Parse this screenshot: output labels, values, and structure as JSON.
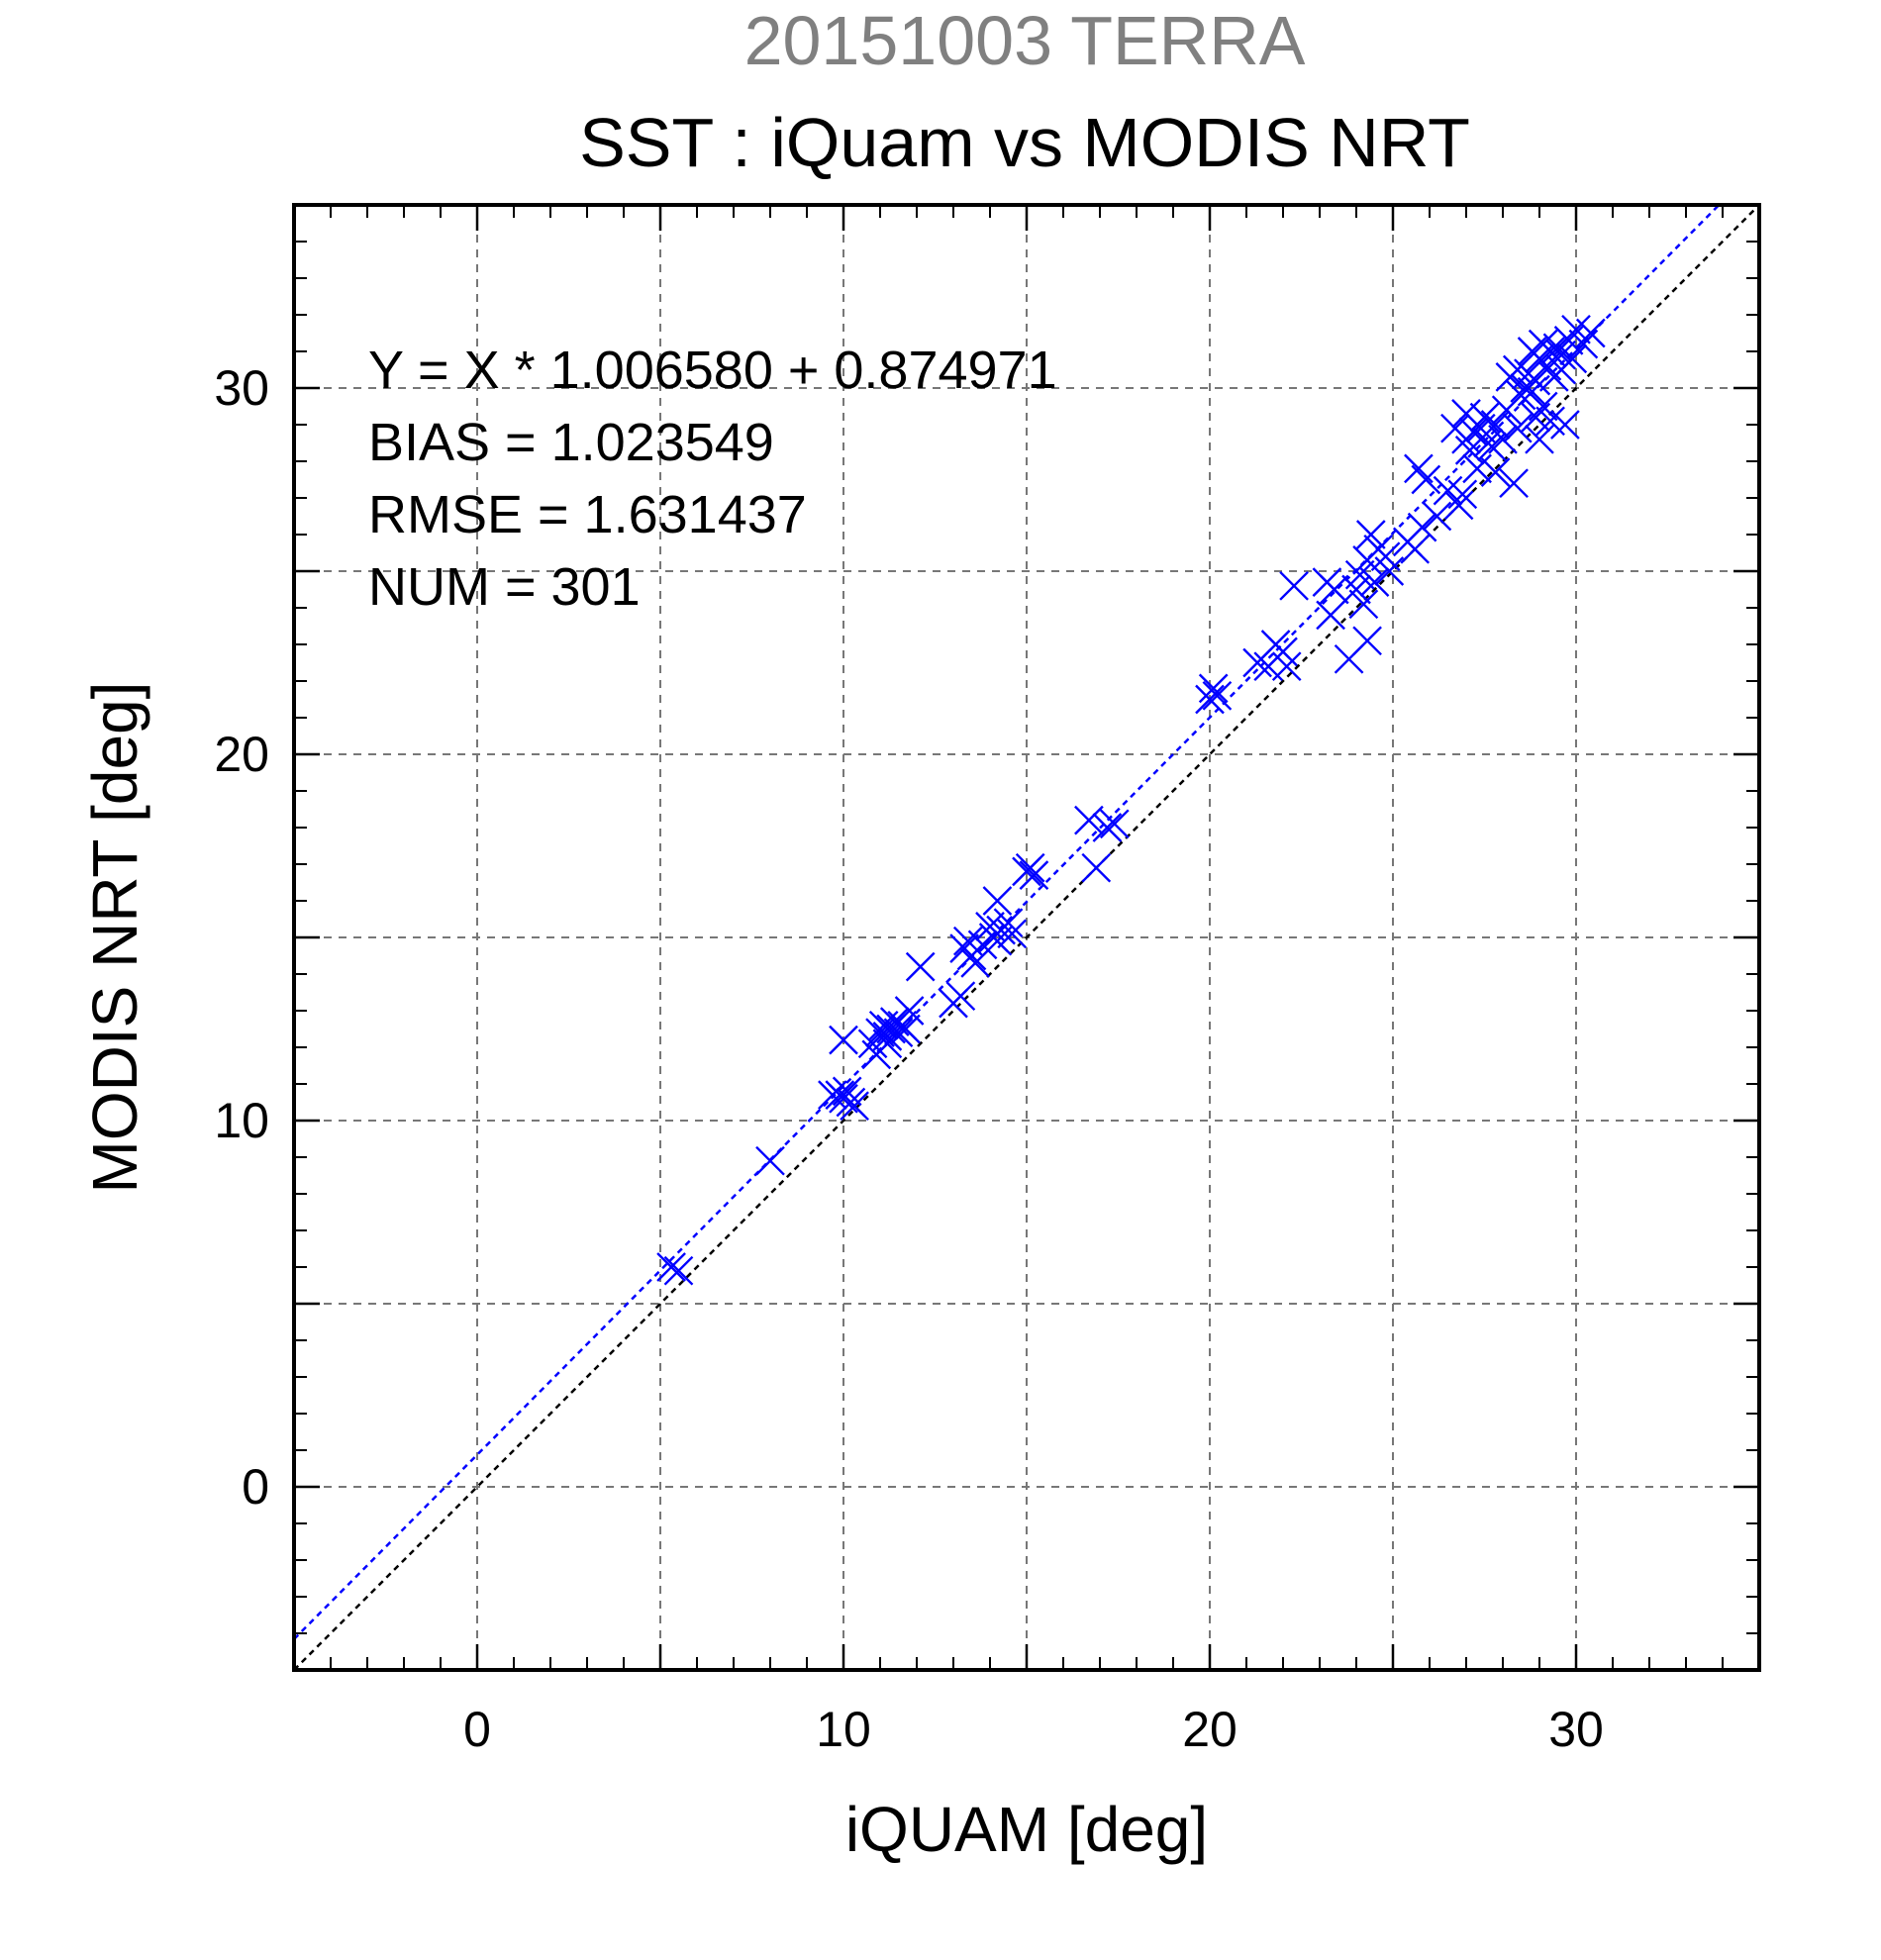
{
  "chart_data": {
    "type": "scatter",
    "title_top": "20151003 TERRA",
    "title": "SST : iQuam vs MODIS NRT",
    "xlabel": "iQUAM [deg]",
    "ylabel": "MODIS NRT [deg]",
    "xlim": [
      -5,
      35
    ],
    "ylim": [
      -5,
      35
    ],
    "xticks": [
      0,
      10,
      20,
      30
    ],
    "yticks": [
      0,
      10,
      20,
      30
    ],
    "xtick_labels": [
      "0",
      "10",
      "20",
      "30"
    ],
    "ytick_labels": [
      "0",
      "10",
      "20",
      "30"
    ],
    "minor_tick_step": 1,
    "grid_step": 5,
    "grid": true,
    "annotations": [
      "Y = X * 1.006580 + 0.874971",
      "BIAS = 1.023549",
      "RMSE = 1.631437",
      "NUM = 301"
    ],
    "regression": {
      "slope": 1.00658,
      "intercept": 0.874971
    },
    "colors": {
      "points": "#0000ff",
      "regression_line": "#0000ff",
      "identity_line": "#000000",
      "title_top": "#808080"
    },
    "series": [
      {
        "values": [
          [
            5.3,
            6.0
          ],
          [
            5.5,
            5.9
          ],
          [
            8.0,
            8.9
          ],
          [
            9.7,
            10.7
          ],
          [
            9.9,
            10.7
          ],
          [
            10.0,
            10.6
          ],
          [
            10.2,
            10.5
          ],
          [
            10.3,
            10.4
          ],
          [
            10.1,
            10.8
          ],
          [
            10.0,
            12.2
          ],
          [
            10.8,
            12.1
          ],
          [
            10.9,
            11.8
          ],
          [
            11.0,
            12.4
          ],
          [
            11.1,
            12.6
          ],
          [
            11.2,
            12.3
          ],
          [
            11.3,
            12.5
          ],
          [
            11.4,
            12.7
          ],
          [
            11.5,
            12.4
          ],
          [
            11.6,
            12.6
          ],
          [
            11.7,
            12.5
          ],
          [
            11.2,
            12.1
          ],
          [
            11.8,
            13.0
          ],
          [
            12.1,
            14.2
          ],
          [
            13.0,
            13.2
          ],
          [
            13.2,
            13.4
          ],
          [
            13.3,
            14.7
          ],
          [
            13.4,
            14.9
          ],
          [
            13.5,
            14.5
          ],
          [
            13.6,
            14.3
          ],
          [
            13.8,
            14.8
          ],
          [
            14.0,
            15.3
          ],
          [
            14.1,
            15.0
          ],
          [
            14.2,
            16.0
          ],
          [
            14.3,
            15.2
          ],
          [
            14.5,
            15.4
          ],
          [
            14.6,
            15.1
          ],
          [
            14.2,
            14.9
          ],
          [
            15.0,
            16.8
          ],
          [
            15.1,
            16.9
          ],
          [
            15.2,
            16.7
          ],
          [
            16.7,
            18.2
          ],
          [
            16.9,
            16.9
          ],
          [
            17.2,
            18.0
          ],
          [
            17.4,
            18.1
          ],
          [
            20.0,
            21.5
          ],
          [
            20.1,
            21.8
          ],
          [
            20.2,
            21.6
          ],
          [
            21.3,
            22.5
          ],
          [
            21.6,
            22.4
          ],
          [
            21.8,
            23.0
          ],
          [
            22.0,
            22.8
          ],
          [
            22.1,
            22.4
          ],
          [
            22.3,
            24.6
          ],
          [
            23.2,
            24.7
          ],
          [
            23.4,
            24.5
          ],
          [
            23.3,
            23.8
          ],
          [
            23.8,
            22.6
          ],
          [
            24.0,
            24.5
          ],
          [
            24.1,
            24.9
          ],
          [
            24.2,
            24.1
          ],
          [
            24.3,
            25.3
          ],
          [
            24.3,
            23.1
          ],
          [
            24.5,
            24.7
          ],
          [
            24.6,
            25.6
          ],
          [
            24.8,
            25.4
          ],
          [
            24.9,
            25.0
          ],
          [
            24.4,
            26.0
          ],
          [
            25.4,
            25.8
          ],
          [
            25.6,
            25.6
          ],
          [
            25.7,
            27.8
          ],
          [
            25.8,
            26.2
          ],
          [
            25.9,
            27.5
          ],
          [
            26.2,
            26.5
          ],
          [
            26.5,
            27.2
          ],
          [
            26.7,
            28.9
          ],
          [
            26.8,
            26.8
          ],
          [
            26.9,
            27.1
          ],
          [
            27.0,
            28.6
          ],
          [
            27.0,
            29.3
          ],
          [
            27.1,
            28.3
          ],
          [
            27.2,
            28.8
          ],
          [
            27.3,
            27.8
          ],
          [
            27.4,
            28.9
          ],
          [
            27.5,
            29.2
          ],
          [
            27.6,
            28.5
          ],
          [
            27.7,
            28.4
          ],
          [
            27.8,
            29.0
          ],
          [
            27.8,
            27.7
          ],
          [
            28.0,
            28.6
          ],
          [
            28.1,
            29.4
          ],
          [
            28.2,
            30.3
          ],
          [
            28.3,
            27.4
          ],
          [
            28.4,
            28.9
          ],
          [
            28.4,
            30.5
          ],
          [
            28.5,
            29.8
          ],
          [
            28.6,
            30.0
          ],
          [
            28.7,
            30.4
          ],
          [
            28.8,
            29.9
          ],
          [
            28.8,
            31.0
          ],
          [
            28.9,
            30.2
          ],
          [
            29.0,
            30.8
          ],
          [
            29.0,
            28.6
          ],
          [
            29.1,
            29.5
          ],
          [
            29.1,
            31.2
          ],
          [
            29.2,
            30.6
          ],
          [
            29.3,
            29.1
          ],
          [
            29.3,
            31.0
          ],
          [
            29.4,
            30.3
          ],
          [
            29.5,
            31.1
          ],
          [
            29.6,
            30.5
          ],
          [
            29.7,
            29.0
          ],
          [
            29.8,
            31.3
          ],
          [
            29.9,
            30.8
          ],
          [
            30.0,
            31.6
          ],
          [
            30.2,
            31.2
          ],
          [
            30.4,
            31.5
          ],
          [
            28.9,
            29.2
          ],
          [
            29.6,
            30.9
          ]
        ]
      }
    ]
  }
}
